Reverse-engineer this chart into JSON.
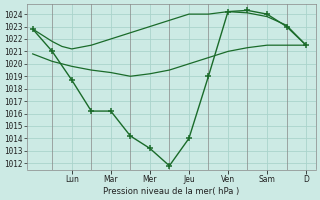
{
  "background_color": "#cceae4",
  "grid_color": "#aad4cc",
  "line_color": "#1a6b2a",
  "xlabel": "Pression niveau de la mer( hPa )",
  "ylim": [
    1011.5,
    1024.8
  ],
  "yticks": [
    1012,
    1013,
    1014,
    1015,
    1016,
    1017,
    1018,
    1019,
    1020,
    1021,
    1022,
    1023,
    1024
  ],
  "day_labels": [
    "Lun",
    "Mar",
    "Mer",
    "Jeu",
    "Ven",
    "Sam",
    "D"
  ],
  "day_tick_positions": [
    2,
    4,
    6,
    8,
    10,
    12,
    14
  ],
  "xlim": [
    -0.3,
    14.5
  ],
  "series_main_x": [
    0,
    1,
    2,
    3,
    4,
    5,
    6,
    7,
    8,
    9,
    10,
    11,
    12,
    13,
    14
  ],
  "series_main_y": [
    1022.8,
    1021.0,
    1018.7,
    1016.2,
    1016.2,
    1014.2,
    1013.2,
    1011.8,
    1014.0,
    1019.0,
    1024.2,
    1024.3,
    1024.0,
    1023.0,
    1021.5
  ],
  "series_upper_x": [
    0,
    0.5,
    1,
    1.5,
    2,
    3,
    4,
    5,
    6,
    7,
    8,
    9,
    10,
    11,
    12,
    13,
    14
  ],
  "series_upper_y": [
    1022.8,
    1022.3,
    1021.8,
    1021.4,
    1021.2,
    1021.5,
    1022.0,
    1022.5,
    1023.0,
    1023.5,
    1024.0,
    1024.0,
    1024.2,
    1024.1,
    1023.8,
    1023.1,
    1021.5
  ],
  "series_lower_x": [
    0,
    0.5,
    1,
    1.5,
    2,
    3,
    4,
    5,
    6,
    7,
    8,
    9,
    10,
    11,
    12,
    13,
    14
  ],
  "series_lower_y": [
    1020.8,
    1020.5,
    1020.2,
    1020.0,
    1019.8,
    1019.5,
    1019.3,
    1019.0,
    1019.2,
    1019.5,
    1020.0,
    1020.5,
    1021.0,
    1021.3,
    1021.5,
    1021.5,
    1021.5
  ]
}
